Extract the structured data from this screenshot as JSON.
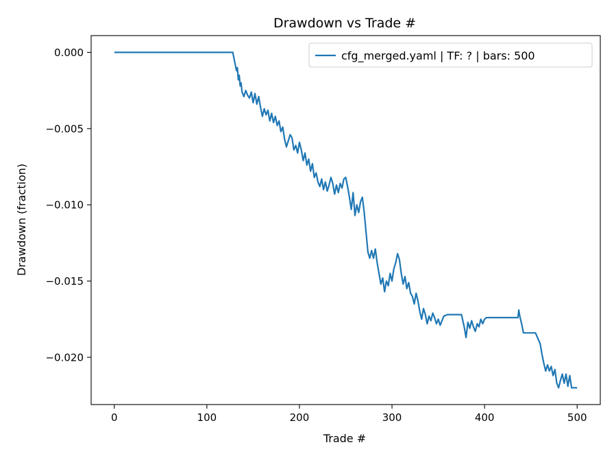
{
  "chart_data": {
    "type": "line",
    "title": "Drawdown vs Trade #",
    "xlabel": "Trade #",
    "ylabel": "Drawdown (fraction)",
    "xlim": [
      -25,
      525
    ],
    "ylim": [
      -0.0231,
      0.0011
    ],
    "xticks": [
      0,
      100,
      200,
      300,
      400,
      500
    ],
    "yticks": [
      0.0,
      -0.005,
      -0.01,
      -0.015,
      -0.02
    ],
    "xtick_labels": [
      "0",
      "100",
      "200",
      "300",
      "400",
      "500"
    ],
    "ytick_labels": [
      "0.000",
      "−0.005",
      "−0.010",
      "−0.015",
      "−0.020"
    ],
    "grid": false,
    "legend_position": "top-right",
    "colors": {
      "series": "#1f77b4"
    },
    "series": [
      {
        "name": "cfg_merged.yaml | TF: ? | bars: 500",
        "x": [
          0,
          128,
          130,
          132,
          133,
          134,
          135,
          136,
          137,
          138,
          140,
          142,
          144,
          146,
          148,
          150,
          152,
          154,
          156,
          158,
          160,
          162,
          164,
          166,
          168,
          170,
          172,
          174,
          176,
          178,
          180,
          182,
          184,
          186,
          188,
          190,
          192,
          194,
          196,
          198,
          200,
          202,
          204,
          206,
          208,
          210,
          212,
          214,
          216,
          218,
          220,
          222,
          224,
          226,
          228,
          230,
          232,
          234,
          236,
          238,
          240,
          242,
          244,
          246,
          248,
          250,
          252,
          254,
          256,
          258,
          260,
          262,
          264,
          266,
          268,
          270,
          272,
          274,
          276,
          278,
          280,
          282,
          284,
          286,
          288,
          290,
          292,
          294,
          296,
          298,
          300,
          302,
          304,
          306,
          308,
          310,
          312,
          314,
          316,
          318,
          320,
          322,
          324,
          326,
          328,
          330,
          332,
          334,
          336,
          338,
          340,
          342,
          344,
          346,
          348,
          350,
          352,
          354,
          356,
          360,
          365,
          370,
          375,
          378,
          380,
          382,
          384,
          386,
          388,
          390,
          392,
          394,
          396,
          398,
          400,
          402,
          404,
          410,
          420,
          430,
          436,
          437,
          438,
          440,
          442,
          444,
          446,
          450,
          455,
          460,
          462,
          464,
          466,
          468,
          470,
          472,
          474,
          476,
          478,
          480,
          482,
          484,
          486,
          488,
          490,
          492,
          494,
          496,
          500
        ],
        "y": [
          0,
          0,
          -0.0006,
          -0.0012,
          -0.001,
          -0.0018,
          -0.0015,
          -0.0022,
          -0.002,
          -0.0026,
          -0.0029,
          -0.0025,
          -0.0028,
          -0.003,
          -0.0026,
          -0.0033,
          -0.0027,
          -0.0034,
          -0.0029,
          -0.0036,
          -0.0042,
          -0.0037,
          -0.0041,
          -0.0038,
          -0.0045,
          -0.004,
          -0.0046,
          -0.0042,
          -0.0048,
          -0.0045,
          -0.0052,
          -0.0049,
          -0.0057,
          -0.0062,
          -0.0058,
          -0.0054,
          -0.0056,
          -0.0064,
          -0.0061,
          -0.0066,
          -0.0059,
          -0.0064,
          -0.0071,
          -0.0066,
          -0.0074,
          -0.007,
          -0.0078,
          -0.0073,
          -0.0082,
          -0.0079,
          -0.0085,
          -0.0088,
          -0.0083,
          -0.009,
          -0.0085,
          -0.0091,
          -0.0087,
          -0.0082,
          -0.0086,
          -0.0093,
          -0.0087,
          -0.0092,
          -0.0086,
          -0.0089,
          -0.0083,
          -0.0082,
          -0.0088,
          -0.0095,
          -0.0103,
          -0.0092,
          -0.0107,
          -0.01,
          -0.0105,
          -0.0098,
          -0.0095,
          -0.0105,
          -0.0118,
          -0.0131,
          -0.0135,
          -0.013,
          -0.0135,
          -0.0129,
          -0.0138,
          -0.0145,
          -0.0152,
          -0.0148,
          -0.0157,
          -0.015,
          -0.0153,
          -0.0145,
          -0.015,
          -0.0142,
          -0.0138,
          -0.0132,
          -0.0136,
          -0.0145,
          -0.0152,
          -0.0147,
          -0.0155,
          -0.0151,
          -0.0158,
          -0.016,
          -0.0165,
          -0.0158,
          -0.0163,
          -0.017,
          -0.0175,
          -0.0168,
          -0.0172,
          -0.0178,
          -0.0173,
          -0.0176,
          -0.0171,
          -0.0174,
          -0.0178,
          -0.0175,
          -0.0179,
          -0.0176,
          -0.0173,
          -0.0172,
          -0.0172,
          -0.0172,
          -0.0172,
          -0.018,
          -0.0187,
          -0.0177,
          -0.0181,
          -0.0176,
          -0.018,
          -0.0183,
          -0.0178,
          -0.018,
          -0.0175,
          -0.0178,
          -0.0175,
          -0.0174,
          -0.0174,
          -0.0174,
          -0.0174,
          -0.0174,
          -0.0174,
          -0.0169,
          -0.0173,
          -0.0178,
          -0.0184,
          -0.0184,
          -0.0184,
          -0.0184,
          -0.0184,
          -0.0191,
          -0.0198,
          -0.0204,
          -0.0209,
          -0.0205,
          -0.0209,
          -0.0206,
          -0.0212,
          -0.0208,
          -0.0217,
          -0.022,
          -0.0215,
          -0.0211,
          -0.0217,
          -0.0211,
          -0.0219,
          -0.0212,
          -0.022,
          -0.022,
          -0.022
        ]
      }
    ]
  }
}
